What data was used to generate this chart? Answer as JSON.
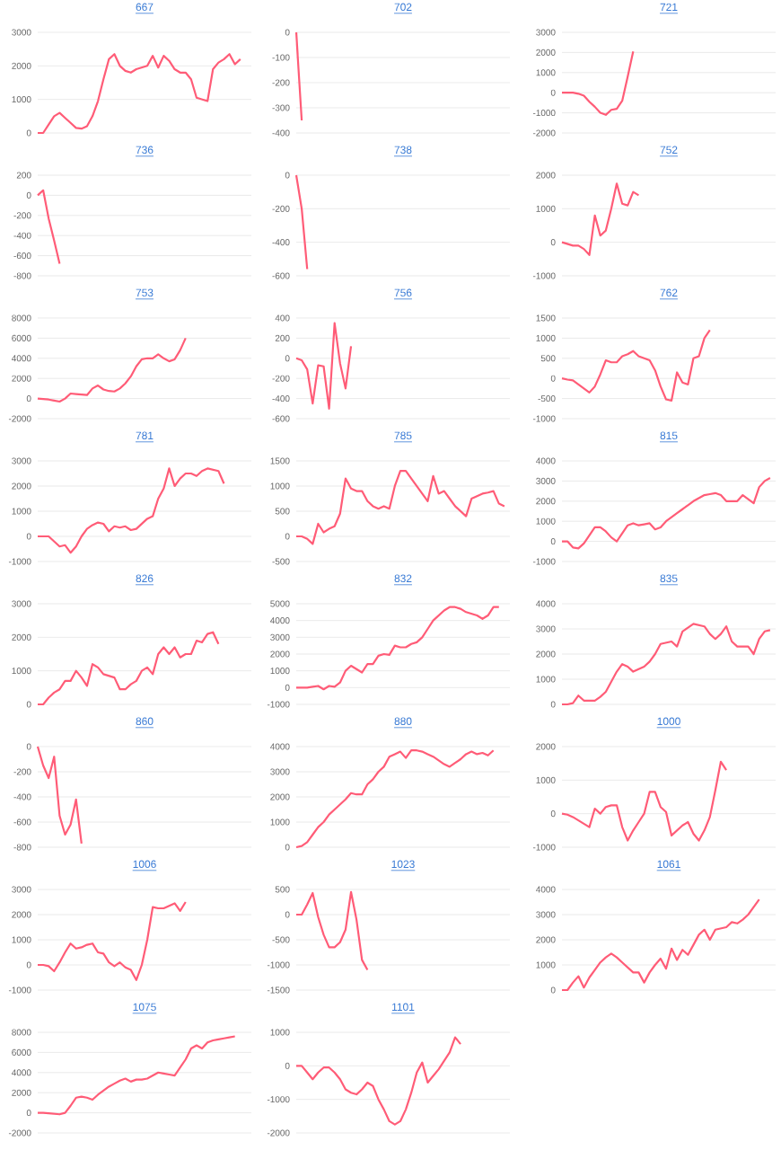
{
  "chart_data": [
    {
      "type": "line",
      "title": "667",
      "color": "#ff5c77",
      "grid": "y",
      "ylim": [
        0,
        3000
      ],
      "yticks": [
        0,
        1000,
        2000,
        3000
      ],
      "categories": [
        null,
        null,
        null,
        null,
        null,
        null,
        null,
        null,
        null,
        null,
        null,
        null,
        null,
        null,
        null,
        null,
        null,
        null,
        null,
        null,
        null,
        null,
        null,
        null,
        null,
        null,
        null,
        null,
        null,
        null,
        null,
        null,
        null,
        null,
        null,
        null,
        null,
        null,
        null,
        null
      ],
      "values": [
        0,
        0,
        250,
        500,
        600,
        450,
        300,
        150,
        130,
        200,
        500,
        950,
        1600,
        2200,
        2350,
        2000,
        1850,
        1800,
        1900,
        1950,
        2000,
        2300,
        1950,
        2300,
        2150,
        1900,
        1800,
        1800,
        1600,
        1050,
        1000,
        950,
        1900,
        2100,
        2200,
        2350,
        2050,
        2200,
        null,
        null
      ]
    },
    {
      "type": "line",
      "title": "702",
      "color": "#ff5c77",
      "grid": "y",
      "ylim": [
        -400,
        0
      ],
      "yticks": [
        -400,
        -300,
        -200,
        -100,
        0
      ],
      "categories": [
        null,
        null,
        null,
        null,
        null,
        null,
        null,
        null,
        null,
        null,
        null,
        null,
        null,
        null,
        null,
        null,
        null,
        null,
        null,
        null,
        null,
        null,
        null,
        null,
        null,
        null,
        null,
        null,
        null,
        null,
        null,
        null,
        null,
        null,
        null,
        null,
        null,
        null,
        null,
        null
      ],
      "values": [
        0,
        -350,
        null,
        null,
        null,
        null,
        null,
        null,
        null,
        null,
        null,
        null,
        null,
        null,
        null,
        null,
        null,
        null,
        null,
        null,
        null,
        null,
        null,
        null,
        null,
        null,
        null,
        null,
        null,
        null,
        null,
        null,
        null,
        null,
        null,
        null,
        null,
        null,
        null,
        null
      ]
    },
    {
      "type": "line",
      "title": "721",
      "color": "#ff5c77",
      "grid": "y",
      "ylim": [
        -2000,
        3000
      ],
      "yticks": [
        -2000,
        -1000,
        0,
        1000,
        2000,
        3000
      ],
      "categories": [
        null,
        null,
        null,
        null,
        null,
        null,
        null,
        null,
        null,
        null,
        null,
        null,
        null,
        null,
        null,
        null,
        null,
        null,
        null,
        null,
        null,
        null,
        null,
        null,
        null,
        null,
        null,
        null,
        null,
        null,
        null,
        null,
        null,
        null,
        null,
        null,
        null,
        null,
        null,
        null
      ],
      "values": [
        0,
        0,
        0,
        -50,
        -150,
        -450,
        -700,
        -1000,
        -1100,
        -850,
        -800,
        -400,
        800,
        2050,
        null,
        null,
        null,
        null,
        null,
        null,
        null,
        null,
        null,
        null,
        null,
        null,
        null,
        null,
        null,
        null,
        null,
        null,
        null,
        null,
        null,
        null,
        null,
        null,
        null,
        null
      ]
    },
    {
      "type": "line",
      "title": "736",
      "color": "#ff5c77",
      "grid": "y",
      "ylim": [
        -800,
        200
      ],
      "yticks": [
        -800,
        -600,
        -400,
        -200,
        0,
        200
      ],
      "categories": [
        null,
        null,
        null,
        null,
        null,
        null,
        null,
        null,
        null,
        null,
        null,
        null,
        null,
        null,
        null,
        null,
        null,
        null,
        null,
        null,
        null,
        null,
        null,
        null,
        null,
        null,
        null,
        null,
        null,
        null,
        null,
        null,
        null,
        null,
        null,
        null,
        null,
        null,
        null,
        null
      ],
      "values": [
        0,
        50,
        -230,
        -450,
        -680,
        null,
        null,
        null,
        null,
        null,
        null,
        null,
        null,
        null,
        null,
        null,
        null,
        null,
        null,
        null,
        null,
        null,
        null,
        null,
        null,
        null,
        null,
        null,
        null,
        null,
        null,
        null,
        null,
        null,
        null,
        null,
        null,
        null,
        null,
        null
      ]
    },
    {
      "type": "line",
      "title": "738",
      "color": "#ff5c77",
      "grid": "y",
      "ylim": [
        -600,
        0
      ],
      "yticks": [
        -600,
        -400,
        -200,
        0
      ],
      "categories": [
        null,
        null,
        null,
        null,
        null,
        null,
        null,
        null,
        null,
        null,
        null,
        null,
        null,
        null,
        null,
        null,
        null,
        null,
        null,
        null,
        null,
        null,
        null,
        null,
        null,
        null,
        null,
        null,
        null,
        null,
        null,
        null,
        null,
        null,
        null,
        null,
        null,
        null,
        null,
        null
      ],
      "values": [
        0,
        -200,
        -560,
        null,
        null,
        null,
        null,
        null,
        null,
        null,
        null,
        null,
        null,
        null,
        null,
        null,
        null,
        null,
        null,
        null,
        null,
        null,
        null,
        null,
        null,
        null,
        null,
        null,
        null,
        null,
        null,
        null,
        null,
        null,
        null,
        null,
        null,
        null,
        null,
        null
      ]
    },
    {
      "type": "line",
      "title": "752",
      "color": "#ff5c77",
      "grid": "y",
      "ylim": [
        -1000,
        2000
      ],
      "yticks": [
        -1000,
        0,
        1000,
        2000
      ],
      "categories": [
        null,
        null,
        null,
        null,
        null,
        null,
        null,
        null,
        null,
        null,
        null,
        null,
        null,
        null,
        null,
        null,
        null,
        null,
        null,
        null,
        null,
        null,
        null,
        null,
        null,
        null,
        null,
        null,
        null,
        null,
        null,
        null,
        null,
        null,
        null,
        null,
        null,
        null,
        null,
        null
      ],
      "values": [
        0,
        -50,
        -100,
        -100,
        -200,
        -380,
        800,
        200,
        350,
        1000,
        1750,
        1150,
        1100,
        1500,
        1400,
        null,
        null,
        null,
        null,
        null,
        null,
        null,
        null,
        null,
        null,
        null,
        null,
        null,
        null,
        null,
        null,
        null,
        null,
        null,
        null,
        null,
        null,
        null,
        null,
        null
      ]
    },
    {
      "type": "line",
      "title": "753",
      "color": "#ff5c77",
      "grid": "y",
      "ylim": [
        -2000,
        8000
      ],
      "yticks": [
        -2000,
        0,
        2000,
        4000,
        6000,
        8000
      ],
      "categories": [
        null,
        null,
        null,
        null,
        null,
        null,
        null,
        null,
        null,
        null,
        null,
        null,
        null,
        null,
        null,
        null,
        null,
        null,
        null,
        null,
        null,
        null,
        null,
        null,
        null,
        null,
        null,
        null,
        null,
        null,
        null,
        null,
        null,
        null,
        null,
        null,
        null,
        null,
        null,
        null
      ],
      "values": [
        0,
        -50,
        -100,
        -200,
        -300,
        0,
        500,
        450,
        400,
        350,
        1000,
        1300,
        900,
        750,
        700,
        1000,
        1500,
        2200,
        3200,
        3900,
        4000,
        4000,
        4400,
        4000,
        3700,
        3900,
        4800,
        6000,
        null,
        null,
        null,
        null,
        null,
        null,
        null,
        null,
        null,
        null,
        null,
        null
      ]
    },
    {
      "type": "line",
      "title": "756",
      "color": "#ff5c77",
      "grid": "y",
      "ylim": [
        -600,
        400
      ],
      "yticks": [
        -600,
        -400,
        -200,
        0,
        200,
        400
      ],
      "categories": [
        null,
        null,
        null,
        null,
        null,
        null,
        null,
        null,
        null,
        null,
        null,
        null,
        null,
        null,
        null,
        null,
        null,
        null,
        null,
        null,
        null,
        null,
        null,
        null,
        null,
        null,
        null,
        null,
        null,
        null,
        null,
        null,
        null,
        null,
        null,
        null,
        null,
        null,
        null,
        null
      ],
      "values": [
        0,
        -20,
        -110,
        -450,
        -70,
        -80,
        -500,
        350,
        -50,
        -300,
        120,
        null,
        null,
        null,
        null,
        null,
        null,
        null,
        null,
        null,
        null,
        null,
        null,
        null,
        null,
        null,
        null,
        null,
        null,
        null,
        null,
        null,
        null,
        null,
        null,
        null,
        null,
        null,
        null,
        null
      ]
    },
    {
      "type": "line",
      "title": "762",
      "color": "#ff5c77",
      "grid": "y",
      "ylim": [
        -1000,
        1500
      ],
      "yticks": [
        -1000,
        -500,
        0,
        500,
        1000,
        1500
      ],
      "categories": [
        null,
        null,
        null,
        null,
        null,
        null,
        null,
        null,
        null,
        null,
        null,
        null,
        null,
        null,
        null,
        null,
        null,
        null,
        null,
        null,
        null,
        null,
        null,
        null,
        null,
        null,
        null,
        null,
        null,
        null,
        null,
        null,
        null,
        null,
        null,
        null,
        null,
        null,
        null,
        null
      ],
      "values": [
        0,
        -30,
        -50,
        -150,
        -250,
        -350,
        -200,
        100,
        450,
        400,
        400,
        550,
        600,
        680,
        550,
        500,
        450,
        200,
        -200,
        -520,
        -550,
        150,
        -100,
        -150,
        500,
        550,
        1000,
        1200,
        null,
        null,
        null,
        null,
        null,
        null,
        null,
        null,
        null,
        null,
        null,
        null
      ]
    },
    {
      "type": "line",
      "title": "781",
      "color": "#ff5c77",
      "grid": "y",
      "ylim": [
        -1000,
        3000
      ],
      "yticks": [
        -1000,
        0,
        1000,
        2000,
        3000
      ],
      "categories": [
        null,
        null,
        null,
        null,
        null,
        null,
        null,
        null,
        null,
        null,
        null,
        null,
        null,
        null,
        null,
        null,
        null,
        null,
        null,
        null,
        null,
        null,
        null,
        null,
        null,
        null,
        null,
        null,
        null,
        null,
        null,
        null,
        null,
        null,
        null,
        null,
        null,
        null,
        null,
        null
      ],
      "values": [
        0,
        0,
        0,
        -200,
        -400,
        -350,
        -650,
        -400,
        0,
        300,
        450,
        550,
        500,
        200,
        400,
        350,
        400,
        250,
        300,
        500,
        700,
        800,
        1500,
        1900,
        2700,
        2000,
        2300,
        2500,
        2500,
        2400,
        2600,
        2700,
        2650,
        2600,
        2100,
        null,
        null,
        null,
        null,
        null
      ]
    },
    {
      "type": "line",
      "title": "785",
      "color": "#ff5c77",
      "grid": "y",
      "ylim": [
        -500,
        1500
      ],
      "yticks": [
        -500,
        0,
        500,
        1000,
        1500
      ],
      "categories": [
        null,
        null,
        null,
        null,
        null,
        null,
        null,
        null,
        null,
        null,
        null,
        null,
        null,
        null,
        null,
        null,
        null,
        null,
        null,
        null,
        null,
        null,
        null,
        null,
        null,
        null,
        null,
        null,
        null,
        null,
        null,
        null,
        null,
        null,
        null,
        null,
        null,
        null,
        null,
        null
      ],
      "values": [
        0,
        0,
        -50,
        -150,
        250,
        80,
        150,
        200,
        450,
        1150,
        950,
        900,
        900,
        700,
        600,
        550,
        600,
        550,
        1000,
        1300,
        1300,
        1150,
        1000,
        850,
        700,
        1200,
        850,
        900,
        750,
        600,
        500,
        400,
        750,
        800,
        850,
        870,
        900,
        650,
        600,
        null
      ]
    },
    {
      "type": "line",
      "title": "815",
      "color": "#ff5c77",
      "grid": "y",
      "ylim": [
        -1000,
        4000
      ],
      "yticks": [
        -1000,
        0,
        1000,
        2000,
        3000,
        4000
      ],
      "categories": [
        null,
        null,
        null,
        null,
        null,
        null,
        null,
        null,
        null,
        null,
        null,
        null,
        null,
        null,
        null,
        null,
        null,
        null,
        null,
        null,
        null,
        null,
        null,
        null,
        null,
        null,
        null,
        null,
        null,
        null,
        null,
        null,
        null,
        null,
        null,
        null,
        null,
        null,
        null,
        null
      ],
      "values": [
        0,
        0,
        -300,
        -350,
        -100,
        300,
        700,
        700,
        500,
        200,
        0,
        400,
        800,
        900,
        800,
        850,
        900,
        600,
        700,
        1000,
        1200,
        1400,
        1600,
        1800,
        2000,
        2150,
        2300,
        2350,
        2400,
        2300,
        2000,
        2000,
        2000,
        2300,
        2100,
        1900,
        2700,
        3000,
        3150,
        null
      ]
    },
    {
      "type": "line",
      "title": "826",
      "color": "#ff5c77",
      "grid": "y",
      "ylim": [
        0,
        3000
      ],
      "yticks": [
        0,
        1000,
        2000,
        3000
      ],
      "categories": [
        null,
        null,
        null,
        null,
        null,
        null,
        null,
        null,
        null,
        null,
        null,
        null,
        null,
        null,
        null,
        null,
        null,
        null,
        null,
        null,
        null,
        null,
        null,
        null,
        null,
        null,
        null,
        null,
        null,
        null,
        null,
        null,
        null,
        null,
        null,
        null,
        null,
        null,
        null,
        null
      ],
      "values": [
        0,
        0,
        200,
        350,
        450,
        700,
        700,
        1000,
        800,
        550,
        1200,
        1100,
        900,
        850,
        800,
        450,
        450,
        600,
        700,
        1000,
        1100,
        900,
        1500,
        1700,
        1500,
        1700,
        1400,
        1500,
        1500,
        1900,
        1850,
        2100,
        2150,
        1800,
        null,
        null,
        null,
        null,
        null,
        null
      ]
    },
    {
      "type": "line",
      "title": "832",
      "color": "#ff5c77",
      "grid": "y",
      "ylim": [
        -1000,
        5000
      ],
      "yticks": [
        -1000,
        0,
        1000,
        2000,
        3000,
        4000,
        5000
      ],
      "categories": [
        null,
        null,
        null,
        null,
        null,
        null,
        null,
        null,
        null,
        null,
        null,
        null,
        null,
        null,
        null,
        null,
        null,
        null,
        null,
        null,
        null,
        null,
        null,
        null,
        null,
        null,
        null,
        null,
        null,
        null,
        null,
        null,
        null,
        null,
        null,
        null,
        null,
        null,
        null,
        null
      ],
      "values": [
        0,
        0,
        0,
        50,
        100,
        -100,
        100,
        50,
        300,
        1000,
        1300,
        1100,
        900,
        1400,
        1400,
        1900,
        2000,
        1950,
        2500,
        2400,
        2400,
        2600,
        2700,
        3000,
        3500,
        4000,
        4300,
        4600,
        4800,
        4800,
        4700,
        4500,
        4400,
        4300,
        4100,
        4300,
        4800,
        4800,
        null,
        null
      ]
    },
    {
      "type": "line",
      "title": "835",
      "color": "#ff5c77",
      "grid": "y",
      "ylim": [
        0,
        4000
      ],
      "yticks": [
        0,
        1000,
        2000,
        3000,
        4000
      ],
      "categories": [
        null,
        null,
        null,
        null,
        null,
        null,
        null,
        null,
        null,
        null,
        null,
        null,
        null,
        null,
        null,
        null,
        null,
        null,
        null,
        null,
        null,
        null,
        null,
        null,
        null,
        null,
        null,
        null,
        null,
        null,
        null,
        null,
        null,
        null,
        null,
        null,
        null,
        null,
        null,
        null
      ],
      "values": [
        0,
        0,
        50,
        350,
        150,
        150,
        150,
        300,
        500,
        900,
        1300,
        1600,
        1500,
        1300,
        1400,
        1500,
        1700,
        2000,
        2400,
        2450,
        2500,
        2300,
        2900,
        3050,
        3200,
        3150,
        3100,
        2800,
        2600,
        2800,
        3100,
        2500,
        2300,
        2300,
        2300,
        2000,
        2600,
        2900,
        2950,
        null
      ]
    },
    {
      "type": "line",
      "title": "860",
      "color": "#ff5c77",
      "grid": "y",
      "ylim": [
        -800,
        0
      ],
      "yticks": [
        -800,
        -600,
        -400,
        -200,
        0
      ],
      "categories": [
        null,
        null,
        null,
        null,
        null,
        null,
        null,
        null,
        null,
        null,
        null,
        null,
        null,
        null,
        null,
        null,
        null,
        null,
        null,
        null,
        null,
        null,
        null,
        null,
        null,
        null,
        null,
        null,
        null,
        null,
        null,
        null,
        null,
        null,
        null,
        null,
        null,
        null,
        null,
        null
      ],
      "values": [
        0,
        -150,
        -250,
        -80,
        -550,
        -700,
        -620,
        -420,
        -770,
        null,
        null,
        null,
        null,
        null,
        null,
        null,
        null,
        null,
        null,
        null,
        null,
        null,
        null,
        null,
        null,
        null,
        null,
        null,
        null,
        null,
        null,
        null,
        null,
        null,
        null,
        null,
        null,
        null,
        null,
        null
      ]
    },
    {
      "type": "line",
      "title": "880",
      "color": "#ff5c77",
      "grid": "y",
      "ylim": [
        0,
        4000
      ],
      "yticks": [
        0,
        1000,
        2000,
        3000,
        4000
      ],
      "categories": [
        null,
        null,
        null,
        null,
        null,
        null,
        null,
        null,
        null,
        null,
        null,
        null,
        null,
        null,
        null,
        null,
        null,
        null,
        null,
        null,
        null,
        null,
        null,
        null,
        null,
        null,
        null,
        null,
        null,
        null,
        null,
        null,
        null,
        null,
        null,
        null,
        null,
        null,
        null,
        null
      ],
      "values": [
        0,
        50,
        200,
        500,
        800,
        1000,
        1300,
        1500,
        1700,
        1900,
        2150,
        2100,
        2100,
        2500,
        2700,
        3000,
        3200,
        3600,
        3700,
        3800,
        3550,
        3850,
        3850,
        3800,
        3700,
        3600,
        3450,
        3300,
        3200,
        3350,
        3500,
        3700,
        3800,
        3700,
        3750,
        3650,
        3850,
        null,
        null,
        null
      ]
    },
    {
      "type": "line",
      "title": "1000",
      "color": "#ff5c77",
      "grid": "y",
      "ylim": [
        -1000,
        2000
      ],
      "yticks": [
        -1000,
        0,
        1000,
        2000
      ],
      "categories": [
        null,
        null,
        null,
        null,
        null,
        null,
        null,
        null,
        null,
        null,
        null,
        null,
        null,
        null,
        null,
        null,
        null,
        null,
        null,
        null,
        null,
        null,
        null,
        null,
        null,
        null,
        null,
        null,
        null,
        null,
        null,
        null,
        null,
        null,
        null,
        null,
        null,
        null,
        null,
        null
      ],
      "values": [
        0,
        -30,
        -100,
        -200,
        -300,
        -400,
        150,
        0,
        200,
        250,
        250,
        -400,
        -800,
        -500,
        -250,
        0,
        650,
        650,
        200,
        50,
        -650,
        -500,
        -350,
        -250,
        -600,
        -800,
        -500,
        -100,
        700,
        1550,
        1300,
        null,
        null,
        null,
        null,
        null,
        null,
        null,
        null,
        null
      ]
    },
    {
      "type": "line",
      "title": "1006",
      "color": "#ff5c77",
      "grid": "y",
      "ylim": [
        -1000,
        3000
      ],
      "yticks": [
        -1000,
        0,
        1000,
        2000,
        3000
      ],
      "categories": [
        null,
        null,
        null,
        null,
        null,
        null,
        null,
        null,
        null,
        null,
        null,
        null,
        null,
        null,
        null,
        null,
        null,
        null,
        null,
        null,
        null,
        null,
        null,
        null,
        null,
        null,
        null,
        null,
        null,
        null,
        null,
        null,
        null,
        null,
        null,
        null,
        null,
        null,
        null,
        null
      ],
      "values": [
        0,
        0,
        -50,
        -250,
        100,
        500,
        850,
        650,
        700,
        800,
        850,
        500,
        450,
        100,
        -50,
        100,
        -100,
        -200,
        -600,
        0,
        1000,
        2300,
        2250,
        2250,
        2350,
        2450,
        2150,
        2500,
        null,
        null,
        null,
        null,
        null,
        null,
        null,
        null,
        null,
        null,
        null,
        null
      ]
    },
    {
      "type": "line",
      "title": "1023",
      "color": "#ff5c77",
      "grid": "y",
      "ylim": [
        -1500,
        500
      ],
      "yticks": [
        -1500,
        -1000,
        -500,
        0,
        500
      ],
      "categories": [
        null,
        null,
        null,
        null,
        null,
        null,
        null,
        null,
        null,
        null,
        null,
        null,
        null,
        null,
        null,
        null,
        null,
        null,
        null,
        null,
        null,
        null,
        null,
        null,
        null,
        null,
        null,
        null,
        null,
        null,
        null,
        null,
        null,
        null,
        null,
        null,
        null,
        null,
        null,
        null
      ],
      "values": [
        0,
        0,
        200,
        430,
        -50,
        -400,
        -650,
        -650,
        -550,
        -300,
        450,
        -100,
        -900,
        -1100,
        null,
        null,
        null,
        null,
        null,
        null,
        null,
        null,
        null,
        null,
        null,
        null,
        null,
        null,
        null,
        null,
        null,
        null,
        null,
        null,
        null,
        null,
        null,
        null,
        null,
        null
      ]
    },
    {
      "type": "line",
      "title": "1061",
      "color": "#ff5c77",
      "grid": "y",
      "ylim": [
        0,
        4000
      ],
      "yticks": [
        0,
        1000,
        2000,
        3000,
        4000
      ],
      "categories": [
        null,
        null,
        null,
        null,
        null,
        null,
        null,
        null,
        null,
        null,
        null,
        null,
        null,
        null,
        null,
        null,
        null,
        null,
        null,
        null,
        null,
        null,
        null,
        null,
        null,
        null,
        null,
        null,
        null,
        null,
        null,
        null,
        null,
        null,
        null,
        null,
        null,
        null,
        null,
        null
      ],
      "values": [
        0,
        0,
        300,
        550,
        100,
        500,
        800,
        1100,
        1300,
        1450,
        1300,
        1100,
        900,
        700,
        700,
        300,
        700,
        1000,
        1250,
        850,
        1650,
        1200,
        1600,
        1400,
        1800,
        2200,
        2400,
        2000,
        2400,
        2450,
        2500,
        2700,
        2650,
        2800,
        3000,
        3300,
        3600,
        null,
        null,
        null
      ]
    },
    {
      "type": "line",
      "title": "1075",
      "color": "#ff5c77",
      "grid": "y",
      "ylim": [
        -2000,
        8000
      ],
      "yticks": [
        -2000,
        0,
        2000,
        4000,
        6000,
        8000
      ],
      "categories": [
        null,
        null,
        null,
        null,
        null,
        null,
        null,
        null,
        null,
        null,
        null,
        null,
        null,
        null,
        null,
        null,
        null,
        null,
        null,
        null,
        null,
        null,
        null,
        null,
        null,
        null,
        null,
        null,
        null,
        null,
        null,
        null,
        null,
        null,
        null,
        null,
        null,
        null,
        null,
        null
      ],
      "values": [
        0,
        0,
        -50,
        -100,
        -150,
        0,
        700,
        1500,
        1600,
        1500,
        1300,
        1800,
        2200,
        2600,
        2900,
        3200,
        3400,
        3100,
        3300,
        3300,
        3400,
        3700,
        4000,
        3900,
        3800,
        3700,
        4500,
        5300,
        6400,
        6700,
        6400,
        7000,
        7200,
        7300,
        7400,
        7500,
        7600,
        null,
        null,
        null
      ]
    },
    {
      "type": "line",
      "title": "1101",
      "color": "#ff5c77",
      "grid": "y",
      "ylim": [
        -2000,
        1000
      ],
      "yticks": [
        -2000,
        -1000,
        0,
        1000
      ],
      "categories": [
        null,
        null,
        null,
        null,
        null,
        null,
        null,
        null,
        null,
        null,
        null,
        null,
        null,
        null,
        null,
        null,
        null,
        null,
        null,
        null,
        null,
        null,
        null,
        null,
        null,
        null,
        null,
        null,
        null,
        null,
        null,
        null,
        null,
        null,
        null,
        null,
        null,
        null,
        null,
        null
      ],
      "values": [
        0,
        0,
        -200,
        -400,
        -200,
        -50,
        -50,
        -200,
        -400,
        -700,
        -800,
        -850,
        -700,
        -500,
        -600,
        -1000,
        -1300,
        -1650,
        -1750,
        -1650,
        -1300,
        -800,
        -200,
        100,
        -500,
        -300,
        -100,
        150,
        400,
        850,
        650,
        null,
        null,
        null,
        null,
        null,
        null,
        null,
        null,
        null
      ]
    }
  ]
}
